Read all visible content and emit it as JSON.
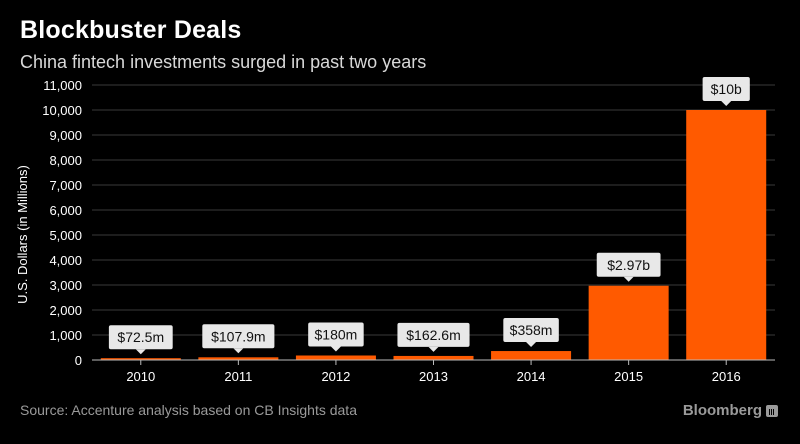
{
  "title": "Blockbuster Deals",
  "subtitle": "China fintech investments surged in past two years",
  "source": "Source: Accenture analysis based on CB Insights data",
  "brand": "Bloomberg",
  "colors": {
    "bar": "#ff5a00",
    "background": "#000000",
    "grid": "#3a3a3a",
    "label_box": "#e8e8e8"
  },
  "chart_data": {
    "type": "bar",
    "categories": [
      "2010",
      "2011",
      "2012",
      "2013",
      "2014",
      "2015",
      "2016"
    ],
    "values": [
      72.5,
      107.9,
      180,
      162.6,
      358,
      2970,
      10000
    ],
    "data_labels": [
      "$72.5m",
      "$107.9m",
      "$180m",
      "$162.6m",
      "$358m",
      "$2.97b",
      "$10b"
    ],
    "ylabel": "U.S. Dollars (in Millions)",
    "xlabel": "",
    "ylim": [
      0,
      11000
    ],
    "yticks": [
      0,
      1000,
      2000,
      3000,
      4000,
      5000,
      6000,
      7000,
      8000,
      9000,
      10000,
      11000
    ],
    "ytick_labels": [
      "0",
      "1,000",
      "2,000",
      "3,000",
      "4,000",
      "5,000",
      "6,000",
      "7,000",
      "8,000",
      "9,000",
      "10,000",
      "11,000"
    ],
    "grid": true
  }
}
